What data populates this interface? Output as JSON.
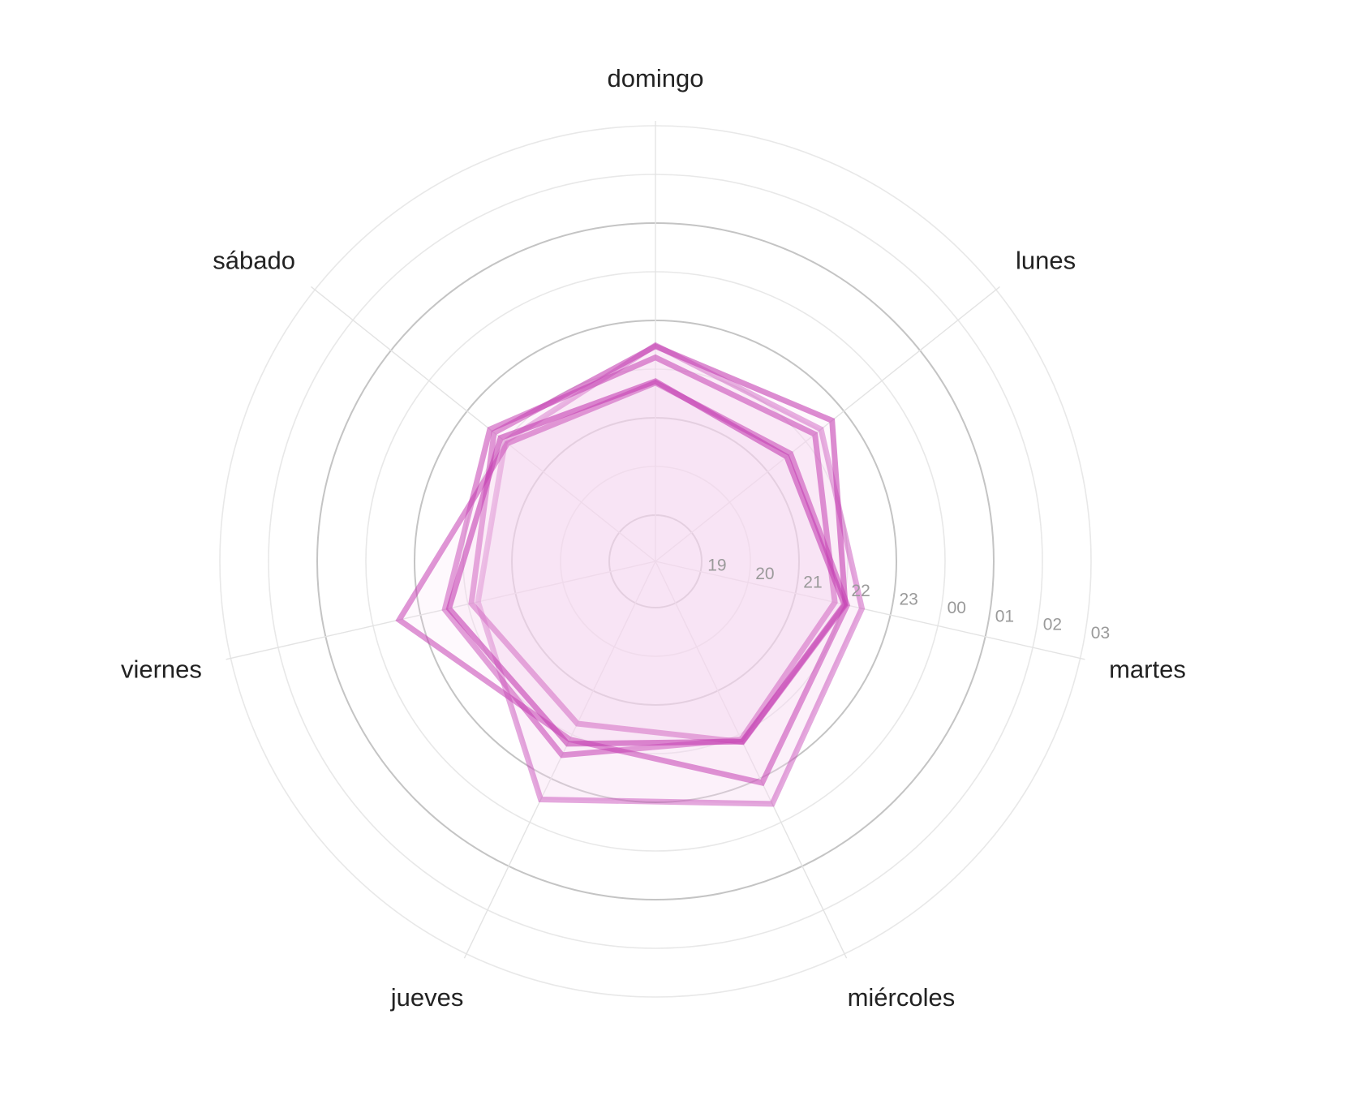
{
  "chart_data": {
    "type": "radar",
    "axes": [
      "domingo",
      "lunes",
      "martes",
      "miércoles",
      "jueves",
      "viernes",
      "sábado"
    ],
    "tick_labels": [
      "19",
      "20",
      "21",
      "22",
      "23",
      "00",
      "01",
      "02",
      "03"
    ],
    "series": [
      {
        "values": [
          22.49,
          22.4,
          22.4,
          23.58,
          23.48,
          21.79,
          22.0
        ]
      },
      {
        "values": [
          22.47,
          22.69,
          22.05,
          22.17,
          21.75,
          21.93,
          22.29
        ]
      },
      {
        "values": [
          22.24,
          22.24,
          21.83,
          22.11,
          22.47,
          22.49,
          22.4
        ]
      },
      {
        "values": [
          21.72,
          21.6,
          22.09,
          23.1,
          22.11,
          23.45,
          21.94
        ]
      },
      {
        "values": [
          21.75,
          21.5,
          22.03,
          22.16,
          22.21,
          22.4,
          22.12
        ]
      }
    ],
    "colors": {
      "line": "#c43fb3",
      "fill": "#f5d7f0",
      "grid_light": "#e8e8e8",
      "grid_dark": "#c4c4c4",
      "spoke": "#e3e3e3"
    }
  }
}
